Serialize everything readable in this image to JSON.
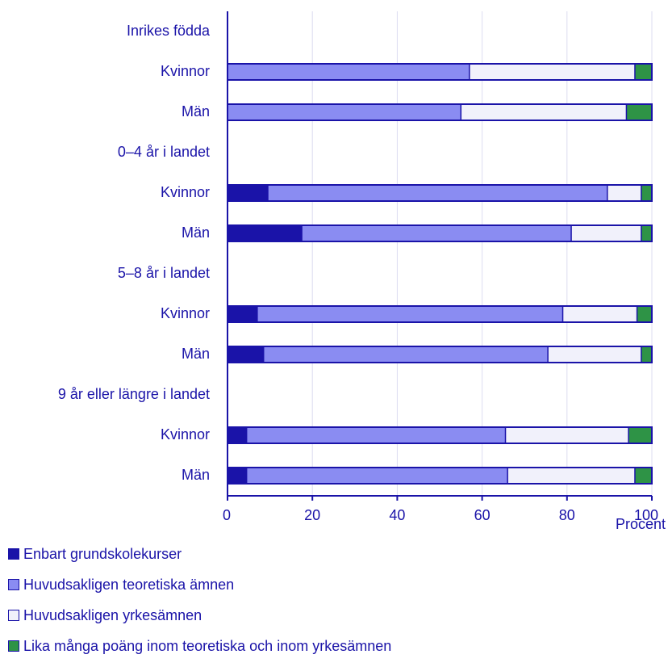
{
  "chart_data": {
    "type": "bar",
    "orientation": "horizontal",
    "stacked": true,
    "xlabel": "Procent",
    "xlim": [
      0,
      100
    ],
    "xticks": [
      0,
      20,
      40,
      60,
      80,
      100
    ],
    "grid": true,
    "legend_position": "bottom-left",
    "groups": [
      {
        "label": "Inrikes födda",
        "rows": [
          {
            "label": "Kvinnor",
            "values": [
              0,
              57,
              39,
              4
            ]
          },
          {
            "label": "Män",
            "values": [
              0,
              55,
              39,
              6
            ]
          }
        ]
      },
      {
        "label": "0–4 år i landet",
        "rows": [
          {
            "label": "Kvinnor",
            "values": [
              9.5,
              80,
              8,
              2.5
            ]
          },
          {
            "label": "Män",
            "values": [
              17.5,
              63.5,
              16.5,
              2.5
            ]
          }
        ]
      },
      {
        "label": "5–8 år i landet",
        "rows": [
          {
            "label": "Kvinnor",
            "values": [
              7,
              72,
              17.5,
              3.5
            ]
          },
          {
            "label": "Män",
            "values": [
              8.5,
              67,
              22,
              2.5
            ]
          }
        ]
      },
      {
        "label": "9 år eller längre i landet",
        "rows": [
          {
            "label": "Kvinnor",
            "values": [
              4.5,
              61,
              29,
              5.5
            ]
          },
          {
            "label": "Män",
            "values": [
              4.5,
              61.5,
              30,
              4
            ]
          }
        ]
      }
    ],
    "series": [
      {
        "name": "Enbart grundskolekurser",
        "color": "#1a13a8"
      },
      {
        "name": "Huvudsakligen teoretiska ämnen",
        "color": "#8a8cf2"
      },
      {
        "name": "Huvudsakligen yrkesämnen",
        "color": "#f1f1fb"
      },
      {
        "name": "Lika många poäng inom teoretiska och inom yrkesämnen",
        "color": "#2e9346"
      }
    ]
  },
  "colors": {
    "text": "#1a13a8",
    "axis": "#1a13a8",
    "grid": "#dcdcf0",
    "bar_outline": "#1a13a8"
  }
}
